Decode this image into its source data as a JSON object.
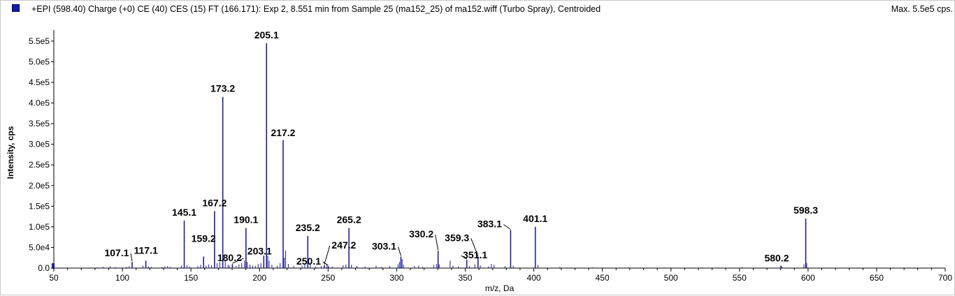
{
  "header": {
    "title": "+EPI (598.40) Charge (+0) CE (40) CES (15) FT (166.171): Exp 2, 8.551 min from Sample 25 (ma152_25) of ma152.wiff (Turbo Spray), Centroided",
    "max": "Max. 5.5e5 cps."
  },
  "colors": {
    "series": "#1f1f9c",
    "axis": "#000000",
    "background": "#ffffff"
  },
  "chart_data": {
    "type": "bar",
    "subtype": "centroided mass spectrum (stick plot)",
    "xlabel": "m/z, Da",
    "ylabel": "Intensity, cps",
    "xlim": [
      50,
      700
    ],
    "ylim": [
      0,
      560000
    ],
    "x_ticks": [
      50,
      100,
      150,
      200,
      250,
      300,
      350,
      400,
      450,
      500,
      550,
      600,
      650,
      700
    ],
    "y_ticks": [
      {
        "value": 0,
        "label": "0.0"
      },
      {
        "value": 50000,
        "label": "5.0e4"
      },
      {
        "value": 100000,
        "label": "1.0e5"
      },
      {
        "value": 150000,
        "label": "1.5e5"
      },
      {
        "value": 200000,
        "label": "2.0e5"
      },
      {
        "value": 250000,
        "label": "2.5e5"
      },
      {
        "value": 300000,
        "label": "3.0e5"
      },
      {
        "value": 350000,
        "label": "3.5e5"
      },
      {
        "value": 400000,
        "label": "4.0e5"
      },
      {
        "value": 450000,
        "label": "4.5e5"
      },
      {
        "value": 500000,
        "label": "5.0e5"
      },
      {
        "value": 550000,
        "label": "5.5e5"
      }
    ],
    "grid": false,
    "peaks": [
      {
        "mz": 107.1,
        "intensity": 15000,
        "label": "107.1"
      },
      {
        "mz": 117.1,
        "intensity": 18000,
        "label": "117.1"
      },
      {
        "mz": 145.1,
        "intensity": 115000,
        "label": "145.1"
      },
      {
        "mz": 159.2,
        "intensity": 28000,
        "label": "159.2"
      },
      {
        "mz": 167.2,
        "intensity": 138000,
        "label": "167.2"
      },
      {
        "mz": 173.2,
        "intensity": 415000,
        "label": "173.2"
      },
      {
        "mz": 180.2,
        "intensity": 10000,
        "label": "180.2"
      },
      {
        "mz": 190.1,
        "intensity": 97000,
        "label": "190.1"
      },
      {
        "mz": 203.1,
        "intensity": 30000,
        "label": "203.1"
      },
      {
        "mz": 205.1,
        "intensity": 545000,
        "label": "205.1"
      },
      {
        "mz": 217.2,
        "intensity": 310000,
        "label": "217.2"
      },
      {
        "mz": 235.2,
        "intensity": 78000,
        "label": "235.2"
      },
      {
        "mz": 247.2,
        "intensity": 7000,
        "label": "247.2"
      },
      {
        "mz": 250.1,
        "intensity": 5000,
        "label": "250.1"
      },
      {
        "mz": 265.2,
        "intensity": 97000,
        "label": "265.2"
      },
      {
        "mz": 303.1,
        "intensity": 28000,
        "label": "303.1"
      },
      {
        "mz": 330.2,
        "intensity": 42000,
        "label": "330.2"
      },
      {
        "mz": 351.1,
        "intensity": 20000,
        "label": "351.1"
      },
      {
        "mz": 359.3,
        "intensity": 28000,
        "label": "359.3"
      },
      {
        "mz": 383.1,
        "intensity": 92000,
        "label": "383.1"
      },
      {
        "mz": 401.1,
        "intensity": 100000,
        "label": "401.1"
      },
      {
        "mz": 580.2,
        "intensity": 6000,
        "label": "580.2"
      },
      {
        "mz": 598.3,
        "intensity": 120000,
        "label": "598.3"
      }
    ],
    "minor_peaks": [
      [
        82,
        2000
      ],
      [
        86,
        3000
      ],
      [
        91,
        4000
      ],
      [
        95,
        2500
      ],
      [
        103,
        3000
      ],
      [
        105,
        5000
      ],
      [
        115,
        6000
      ],
      [
        119,
        4000
      ],
      [
        121,
        3000
      ],
      [
        129,
        2500
      ],
      [
        131,
        4000
      ],
      [
        133,
        5000
      ],
      [
        135,
        3000
      ],
      [
        143,
        6000
      ],
      [
        147,
        7000
      ],
      [
        149,
        4000
      ],
      [
        155,
        5000
      ],
      [
        157,
        8000
      ],
      [
        161,
        6000
      ],
      [
        163,
        9000
      ],
      [
        165,
        7000
      ],
      [
        169,
        12000
      ],
      [
        171,
        15000
      ],
      [
        175,
        20000
      ],
      [
        177,
        8000
      ],
      [
        178,
        6000
      ],
      [
        183,
        5000
      ],
      [
        185,
        9000
      ],
      [
        187,
        12000
      ],
      [
        189,
        18000
      ],
      [
        191,
        15000
      ],
      [
        193,
        8000
      ],
      [
        195,
        6000
      ],
      [
        197,
        5000
      ],
      [
        199,
        10000
      ],
      [
        201,
        12000
      ],
      [
        206,
        30000
      ],
      [
        207,
        18000
      ],
      [
        209,
        8000
      ],
      [
        213,
        6000
      ],
      [
        215,
        12000
      ],
      [
        218,
        25000
      ],
      [
        219,
        42000
      ],
      [
        221,
        10000
      ],
      [
        225,
        5000
      ],
      [
        231,
        6000
      ],
      [
        233,
        9000
      ],
      [
        237,
        12000
      ],
      [
        241,
        4000
      ],
      [
        245,
        5000
      ],
      [
        249,
        8000
      ],
      [
        253,
        4000
      ],
      [
        261,
        7000
      ],
      [
        263,
        9000
      ],
      [
        267,
        8000
      ],
      [
        271,
        5000
      ],
      [
        277,
        4000
      ],
      [
        285,
        6000
      ],
      [
        289,
        3000
      ],
      [
        295,
        5000
      ],
      [
        301,
        9000
      ],
      [
        302,
        15000
      ],
      [
        304,
        22000
      ],
      [
        305,
        8000
      ],
      [
        313,
        5000
      ],
      [
        316,
        6000
      ],
      [
        319,
        3000
      ],
      [
        327,
        8000
      ],
      [
        329,
        10000
      ],
      [
        331,
        9000
      ],
      [
        339,
        18000
      ],
      [
        341,
        6000
      ],
      [
        345,
        4000
      ],
      [
        353,
        5000
      ],
      [
        357,
        9000
      ],
      [
        361,
        7000
      ],
      [
        367,
        4000
      ],
      [
        369,
        10000
      ],
      [
        371,
        8000
      ],
      [
        379,
        5000
      ],
      [
        385,
        6000
      ],
      [
        403,
        8000
      ],
      [
        419,
        3000
      ],
      [
        443,
        2000
      ],
      [
        469,
        2000
      ],
      [
        495,
        1500
      ],
      [
        523,
        2000
      ],
      [
        552,
        2500
      ],
      [
        581,
        3000
      ],
      [
        597,
        9000
      ],
      [
        599,
        12000
      ]
    ],
    "label_leaders": [
      {
        "label": "107.1",
        "mz": 107.1,
        "intensity": 15000
      },
      {
        "label": "180.2",
        "mz": 180.2,
        "intensity": 10000
      },
      {
        "label": "250.1",
        "mz": 250.1,
        "intensity": 5000
      },
      {
        "label": "247.2",
        "mz": 247.2,
        "intensity": 7000
      },
      {
        "label": "303.1",
        "mz": 303.1,
        "intensity": 28000
      },
      {
        "label": "330.2",
        "mz": 330.2,
        "intensity": 42000
      },
      {
        "label": "351.1",
        "mz": 351.1,
        "intensity": 20000
      },
      {
        "label": "359.3",
        "mz": 359.3,
        "intensity": 28000
      },
      {
        "label": "383.1",
        "mz": 383.1,
        "intensity": 92000
      }
    ]
  }
}
